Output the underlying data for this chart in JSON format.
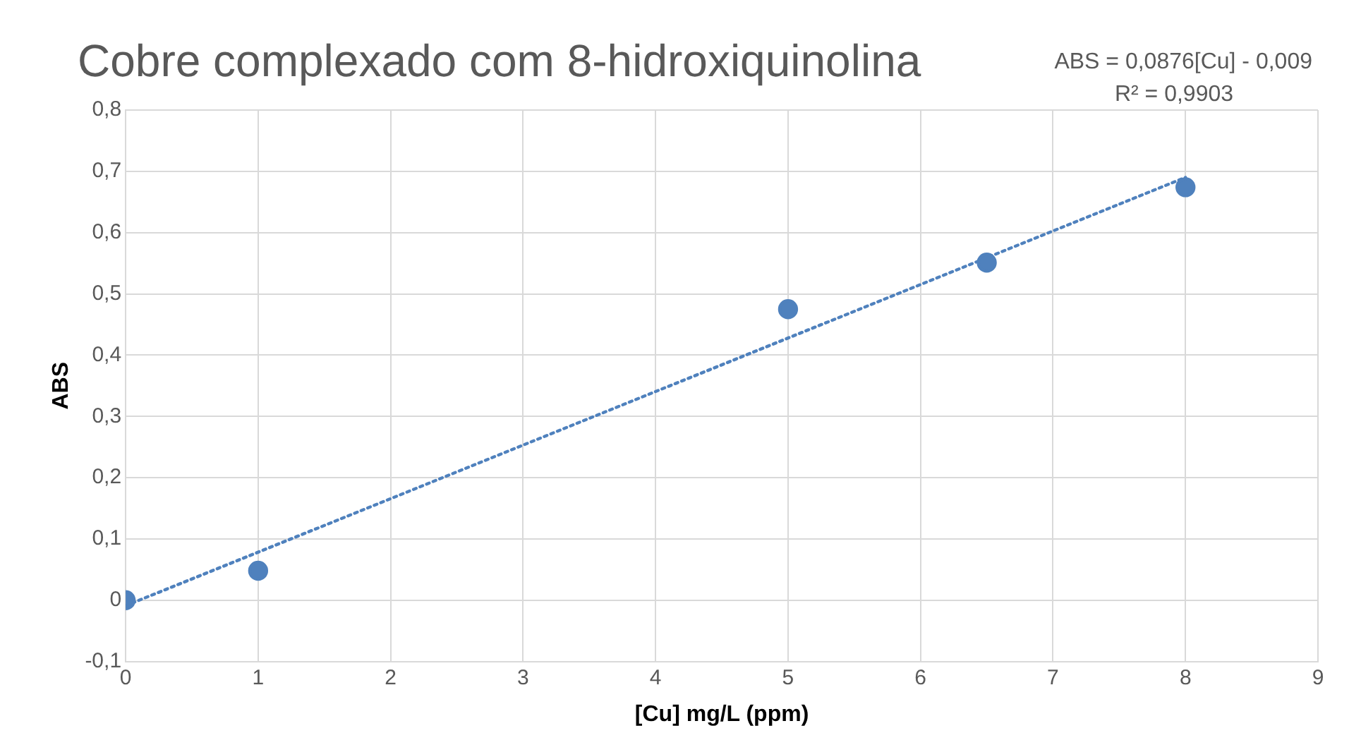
{
  "chart_data": {
    "type": "scatter",
    "title": "Cobre complexado com 8-hidroxiquinolina",
    "xlabel": "[Cu] mg/L (ppm)",
    "ylabel": "ABS",
    "annotations": [
      "ABS = 0,0876[Cu] - 0,009",
      "R² = 0,9903"
    ],
    "series": [
      {
        "color": "#4f81bd",
        "x": [
          0,
          1,
          5,
          6.5,
          8
        ],
        "values": [
          0,
          0.048,
          0.475,
          0.551,
          0.674
        ],
        "marker": "circle"
      },
      {
        "type": "line",
        "color": "#4f81bd",
        "x": [
          0,
          8
        ],
        "values": [
          -0.009,
          0.69
        ],
        "line_style": "dotted",
        "marker": "none"
      }
    ],
    "xlim": [
      0,
      9
    ],
    "xticks": [
      0,
      1,
      2,
      3,
      4,
      5,
      6,
      7,
      8,
      9
    ],
    "ylim": [
      -0.1,
      0.8
    ],
    "yticks": [
      {
        "value": -0.1,
        "label": "-0,1"
      },
      0,
      {
        "value": 0.1,
        "label": "0,1"
      },
      {
        "value": 0.2,
        "label": "0,2"
      },
      {
        "value": 0.3,
        "label": "0,3"
      },
      {
        "value": 0.4,
        "label": "0,4"
      },
      {
        "value": 0.5,
        "label": "0,5"
      },
      {
        "value": 0.6,
        "label": "0,6"
      },
      {
        "value": 0.7,
        "label": "0,7"
      },
      {
        "value": 0.8,
        "label": "0,8"
      }
    ],
    "grid": true,
    "legend": false
  }
}
